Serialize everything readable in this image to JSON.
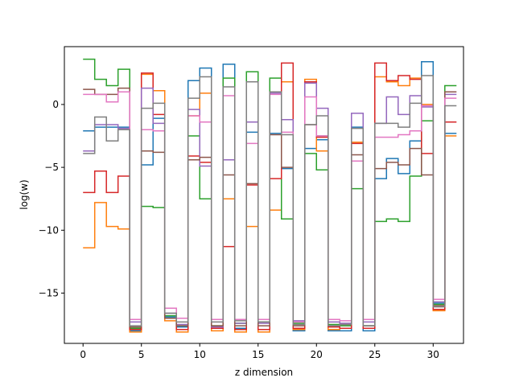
{
  "chart_data": {
    "type": "line",
    "step": "post",
    "title": "",
    "xlabel": "z dimension",
    "ylabel": "log(w)",
    "xlim": [
      -1.6,
      32.6
    ],
    "ylim": [
      -19.0,
      4.6
    ],
    "xticks": [
      0,
      5,
      10,
      15,
      20,
      25,
      30
    ],
    "yticks": [
      -15,
      -10,
      -5,
      0
    ],
    "ytick_labels": [
      "−15",
      "−10",
      "−5",
      "0"
    ],
    "grid": false,
    "legend": "none",
    "x": [
      0,
      1,
      2,
      3,
      4,
      5,
      6,
      7,
      8,
      9,
      10,
      11,
      12,
      13,
      14,
      15,
      16,
      17,
      18,
      19,
      20,
      21,
      22,
      23,
      24,
      25,
      26,
      27,
      28,
      29,
      30,
      31
    ],
    "series": [
      {
        "color": "#1f77b4",
        "values": [
          -2.1,
          -1.8,
          -1.8,
          -1.8,
          -18.0,
          -4.8,
          -1.1,
          -16.9,
          -17.7,
          1.9,
          2.9,
          -17.8,
          3.2,
          -17.8,
          -2.2,
          -17.9,
          -2.3,
          -5.1,
          -18.0,
          -3.5,
          -2.8,
          -18.0,
          -18.0,
          -1.8,
          -18.0,
          -5.9,
          -4.3,
          -5.5,
          -2.9,
          3.4,
          -15.8,
          -2.3
        ]
      },
      {
        "color": "#ff7f0e",
        "values": [
          -11.4,
          -7.8,
          -9.7,
          -9.9,
          -18.1,
          2.4,
          1.1,
          -17.2,
          -18.1,
          -0.9,
          0.9,
          -18.0,
          -7.5,
          -18.1,
          -9.7,
          -18.1,
          -8.4,
          1.8,
          -17.9,
          2.0,
          -3.7,
          -17.9,
          -17.8,
          -3.0,
          -17.8,
          2.2,
          1.8,
          1.5,
          2.1,
          0.0,
          -16.4,
          -2.5
        ]
      },
      {
        "color": "#2ca02c",
        "values": [
          3.6,
          2.0,
          1.5,
          2.8,
          -17.8,
          -8.1,
          -8.2,
          -16.8,
          -17.6,
          -2.5,
          -7.5,
          -17.6,
          2.1,
          -17.4,
          2.6,
          -17.3,
          2.1,
          -9.1,
          -17.4,
          -3.9,
          -5.2,
          -17.5,
          -17.6,
          -6.7,
          -17.6,
          -9.3,
          -9.1,
          -9.3,
          -5.7,
          -1.3,
          -15.9,
          1.5
        ]
      },
      {
        "color": "#d62728",
        "values": [
          -7.0,
          -5.3,
          -7.0,
          -5.7,
          -17.9,
          2.5,
          -0.8,
          -17.0,
          -17.9,
          -4.1,
          -4.6,
          -17.8,
          -11.3,
          -17.9,
          -6.4,
          -17.9,
          -5.9,
          3.3,
          -17.8,
          1.8,
          -2.6,
          -17.7,
          -17.8,
          -3.1,
          -17.8,
          3.3,
          1.9,
          2.3,
          2.0,
          -3.9,
          -16.3,
          -1.4
        ]
      },
      {
        "color": "#9467bd",
        "values": [
          -3.7,
          -1.6,
          -1.6,
          -1.9,
          -17.3,
          1.3,
          -1.5,
          -16.6,
          -17.5,
          -0.4,
          -4.9,
          -17.7,
          -4.4,
          -17.4,
          -1.4,
          -17.4,
          0.9,
          -1.2,
          -17.2,
          1.7,
          -0.3,
          -17.3,
          -17.4,
          -0.7,
          -17.3,
          -1.5,
          0.6,
          -0.8,
          0.7,
          -0.2,
          -15.7,
          0.8
        ]
      },
      {
        "color": "#8c564b",
        "values": [
          1.2,
          0.8,
          0.8,
          1.3,
          -17.7,
          -3.7,
          -3.8,
          -17.0,
          -17.6,
          -4.4,
          -4.2,
          -17.6,
          -5.6,
          -17.6,
          -6.3,
          -17.6,
          -2.4,
          -5.0,
          -17.6,
          -1.6,
          -2.5,
          -17.6,
          -17.5,
          -4.0,
          -17.6,
          -5.1,
          -4.6,
          -4.8,
          -3.5,
          -5.6,
          -16.0,
          1.0
        ]
      },
      {
        "color": "#e377c2",
        "values": [
          0.8,
          0.8,
          0.2,
          1.0,
          -17.1,
          -2.0,
          -2.1,
          -16.2,
          -17.0,
          -0.9,
          -1.4,
          -17.1,
          0.7,
          -17.1,
          -3.1,
          -17.1,
          0.8,
          -2.2,
          -17.3,
          0.6,
          -2.5,
          -17.1,
          -17.2,
          -4.5,
          -17.1,
          -2.6,
          -2.6,
          -2.4,
          -2.1,
          -0.1,
          -15.5,
          0.5
        ]
      },
      {
        "color": "#7f7f7f",
        "values": [
          -3.9,
          -1.0,
          -2.9,
          -2.0,
          -17.6,
          -0.3,
          0.1,
          -16.6,
          -17.3,
          0.5,
          2.2,
          -17.3,
          1.4,
          -17.2,
          1.8,
          -17.3,
          1.0,
          -2.4,
          -17.5,
          -1.6,
          -0.9,
          -17.6,
          -17.5,
          -1.9,
          -17.6,
          -1.5,
          -1.5,
          -1.8,
          0.1,
          2.3,
          -16.1,
          -0.1
        ]
      }
    ]
  }
}
